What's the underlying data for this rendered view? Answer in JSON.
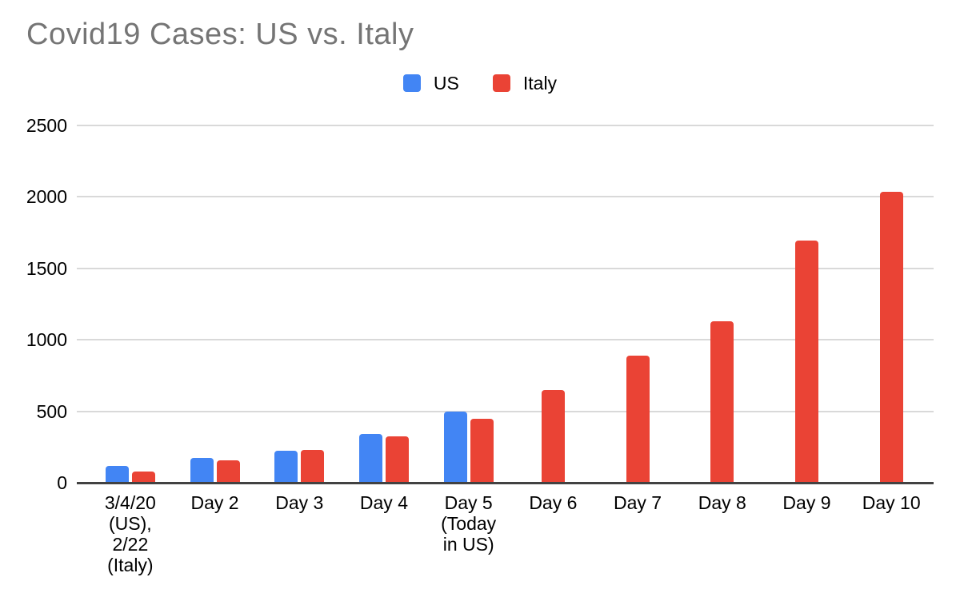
{
  "title": {
    "text": "Covid19 Cases: US vs. Italy",
    "color": "#757575"
  },
  "legend": {
    "items": [
      {
        "label": "US",
        "color": "#4285F4"
      },
      {
        "label": "Italy",
        "color": "#EA4335"
      }
    ]
  },
  "chart_data": {
    "type": "bar",
    "title": "Covid19 Cases: US vs. Italy",
    "categories": [
      "3/4/20\n(US),\n2/22\n(Italy)",
      "Day 2",
      "Day 3",
      "Day 4",
      "Day 5\n(Today\nin US)",
      "Day 6",
      "Day 7",
      "Day 8",
      "Day 9",
      "Day 10"
    ],
    "series": [
      {
        "name": "US",
        "color": "#4285F4",
        "values": [
          120,
          175,
          225,
          340,
          500,
          null,
          null,
          null,
          null,
          null
        ]
      },
      {
        "name": "Italy",
        "color": "#EA4335",
        "values": [
          79,
          155,
          229,
          322,
          445,
          650,
          888,
          1128,
          1694,
          2036
        ]
      }
    ],
    "xlabel": "",
    "ylabel": "",
    "y_ticks": [
      0,
      500,
      1000,
      1500,
      2000,
      2500
    ],
    "ylim": [
      0,
      2500
    ],
    "grid": true,
    "legend_position": "top-center",
    "colors": {
      "gridline": "#d9d9d9",
      "axis_line": "#424242",
      "tick_text": "#000000",
      "title_text": "#757575",
      "background": "#ffffff"
    }
  }
}
